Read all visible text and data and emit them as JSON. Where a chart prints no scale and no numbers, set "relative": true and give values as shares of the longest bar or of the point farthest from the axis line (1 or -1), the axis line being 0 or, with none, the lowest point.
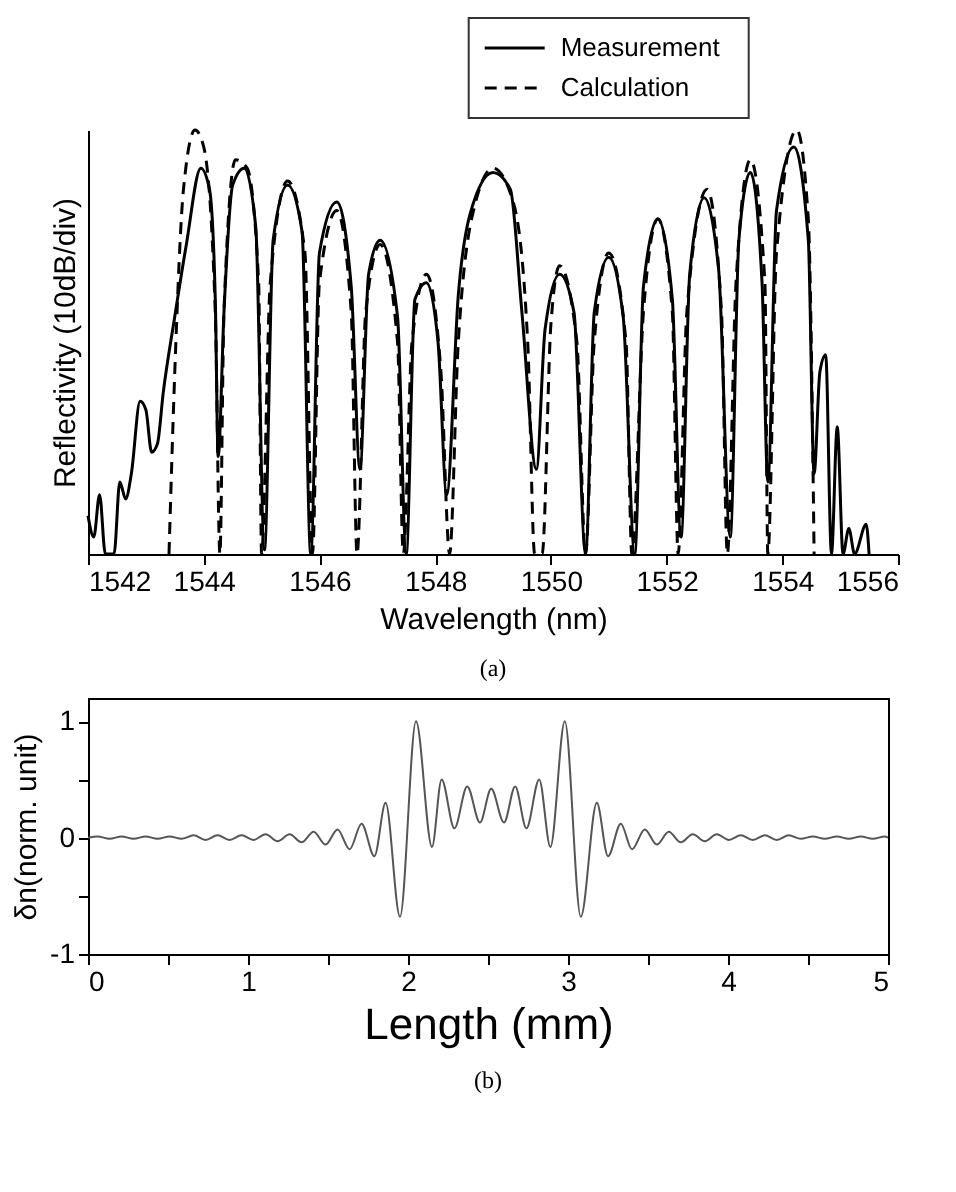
{
  "chart_data": [
    {
      "type": "line",
      "relative": true,
      "xlabel": "Wavelength (nm)",
      "ylabel": "Reflectivity (10dB/div)",
      "xlim": [
        1542,
        1556
      ],
      "xticks": [
        1542,
        1544,
        1546,
        1548,
        1550,
        1552,
        1554,
        1556
      ],
      "legend": "top",
      "annotations": [
        "(a)"
      ],
      "series": [
        {
          "name": "Measurement",
          "color": "#000000",
          "line_style": "solid",
          "x": [
            1542.0,
            1542.1,
            1542.2,
            1542.3,
            1542.45,
            1542.55,
            1542.65,
            1542.75,
            1542.9,
            1543.0,
            1543.1,
            1543.2,
            1543.3,
            1543.5,
            1543.7,
            1543.95,
            1544.1,
            1544.2,
            1544.25,
            1544.35,
            1544.5,
            1544.7,
            1544.9,
            1545.05,
            1545.2,
            1545.45,
            1545.7,
            1545.85,
            1546.0,
            1546.3,
            1546.55,
            1546.7,
            1546.85,
            1547.05,
            1547.35,
            1547.5,
            1547.65,
            1547.85,
            1548.05,
            1548.2,
            1548.4,
            1548.6,
            1549.0,
            1549.3,
            1549.5,
            1549.75,
            1549.9,
            1550.15,
            1550.4,
            1550.6,
            1550.75,
            1551.0,
            1551.25,
            1551.45,
            1551.6,
            1551.85,
            1552.1,
            1552.25,
            1552.4,
            1552.65,
            1552.9,
            1553.1,
            1553.25,
            1553.45,
            1553.65,
            1553.75,
            1553.9,
            1554.2,
            1554.45,
            1554.55,
            1554.65,
            1554.75,
            1554.85,
            1554.95,
            1555.05,
            1555.15,
            1555.25,
            1555.45,
            1555.5
          ],
          "values": [
            0.09,
            0.04,
            0.14,
            0,
            0,
            0.17,
            0.13,
            0.19,
            0.36,
            0.34,
            0.24,
            0.26,
            0.38,
            0.56,
            0.73,
            0.91,
            0.86,
            0.6,
            0.23,
            0.57,
            0.87,
            0.91,
            0.77,
            0.01,
            0.74,
            0.87,
            0.76,
            0,
            0.71,
            0.83,
            0.63,
            0.2,
            0.66,
            0.74,
            0.56,
            0,
            0.6,
            0.64,
            0.5,
            0.14,
            0.61,
            0.8,
            0.9,
            0.86,
            0.57,
            0.2,
            0.53,
            0.66,
            0.57,
            0,
            0.57,
            0.7,
            0.56,
            0,
            0.63,
            0.79,
            0.6,
            0.04,
            0.66,
            0.84,
            0.67,
            0.04,
            0.74,
            0.9,
            0.64,
            0.17,
            0.81,
            0.96,
            0.74,
            0.19,
            0.43,
            0.47,
            0,
            0.3,
            0,
            0.06,
            0,
            0.07,
            0
          ]
        },
        {
          "name": "Calculation",
          "color": "#000000",
          "line_style": "dashed",
          "x": [
            1543.4,
            1543.5,
            1543.65,
            1543.85,
            1544.0,
            1544.2,
            1544.28,
            1544.35,
            1544.55,
            1544.75,
            1544.95,
            1545.0,
            1545.15,
            1545.45,
            1545.75,
            1545.88,
            1546.0,
            1546.3,
            1546.55,
            1546.65,
            1546.8,
            1547.05,
            1547.35,
            1547.45,
            1547.6,
            1547.85,
            1548.1,
            1548.25,
            1548.4,
            1548.7,
            1549.0,
            1549.35,
            1549.6,
            1549.72,
            1549.85,
            1550.0,
            1550.15,
            1550.45,
            1550.6,
            1550.75,
            1551.0,
            1551.3,
            1551.4,
            1551.6,
            1551.85,
            1552.1,
            1552.2,
            1552.35,
            1552.7,
            1552.95,
            1553.05,
            1553.2,
            1553.45,
            1553.7,
            1553.75,
            1553.9,
            1554.25,
            1554.45,
            1554.55
          ],
          "values": [
            0,
            0.43,
            0.86,
            1,
            0.96,
            0.57,
            0,
            0.57,
            0.93,
            0.91,
            0.64,
            0,
            0.64,
            0.88,
            0.71,
            0,
            0.64,
            0.81,
            0.57,
            0,
            0.57,
            0.73,
            0.5,
            0,
            0.5,
            0.66,
            0.43,
            0,
            0.5,
            0.83,
            0.91,
            0.83,
            0.5,
            0,
            0,
            0.54,
            0.68,
            0.5,
            0,
            0.5,
            0.71,
            0.5,
            0,
            0.57,
            0.79,
            0.57,
            0,
            0.57,
            0.86,
            0.57,
            0,
            0.64,
            0.93,
            0.64,
            0,
            0.71,
            1,
            0.79,
            0
          ]
        }
      ]
    },
    {
      "type": "line",
      "xlabel": "Length (mm)",
      "ylabel": "δn(norm. unit)",
      "xlim": [
        0,
        5
      ],
      "ylim": [
        -1,
        1.2
      ],
      "xticks": [
        0,
        {
          "value": 0.5,
          "label": null
        },
        1,
        {
          "value": 1.5,
          "label": null
        },
        2,
        {
          "value": 2.5,
          "label": null
        },
        3,
        {
          "value": 3.5,
          "label": null
        },
        4,
        {
          "value": 4.5,
          "label": null
        },
        5
      ],
      "yticks": [
        -1,
        {
          "value": -0.5,
          "label": null
        },
        0,
        {
          "value": 0.5,
          "label": null
        },
        1
      ],
      "annotations": [
        "(b)"
      ],
      "series": [
        {
          "color": "#555555",
          "line_style": "solid",
          "x": [
            0,
            0.06,
            0.135,
            0.21,
            0.285,
            0.36,
            0.435,
            0.51,
            0.585,
            0.66,
            0.735,
            0.81,
            0.885,
            0.96,
            1.035,
            1.11,
            1.185,
            1.26,
            1.335,
            1.41,
            1.485,
            1.56,
            1.635,
            1.71,
            1.79,
            1.86,
            1.95,
            2.05,
            2.15,
            2.21,
            2.29,
            2.37,
            2.45,
            2.52,
            2.6,
            2.67,
            2.74,
            2.82,
            2.89,
            2.98,
            3.08,
            3.18,
            3.25,
            3.33,
            3.4,
            3.48,
            3.555,
            3.63,
            3.705,
            3.78,
            3.855,
            3.93,
            4.005,
            4.08,
            4.155,
            4.23,
            4.305,
            4.38,
            4.455,
            4.53,
            4.605,
            4.68,
            4.755,
            4.83,
            4.905,
            4.98,
            5
          ],
          "values": [
            0,
            0.01,
            -0.01,
            0.01,
            -0.01,
            0.01,
            -0.01,
            0.01,
            -0.01,
            0.02,
            -0.02,
            0.02,
            -0.02,
            0.02,
            -0.02,
            0.03,
            -0.03,
            0.03,
            -0.04,
            0.05,
            -0.06,
            0.07,
            -0.1,
            0.12,
            -0.16,
            0.3,
            -0.68,
            1.0,
            -0.08,
            0.5,
            0.08,
            0.44,
            0.13,
            0.42,
            0.13,
            0.44,
            0.08,
            0.5,
            -0.08,
            1.0,
            -0.68,
            0.3,
            -0.16,
            0.12,
            -0.1,
            0.07,
            -0.06,
            0.05,
            -0.04,
            0.03,
            -0.03,
            0.03,
            -0.02,
            0.02,
            -0.02,
            0.02,
            -0.02,
            0.02,
            -0.01,
            0.01,
            -0.01,
            0.01,
            -0.01,
            0.01,
            -0.01,
            0.01,
            0
          ]
        }
      ]
    }
  ]
}
